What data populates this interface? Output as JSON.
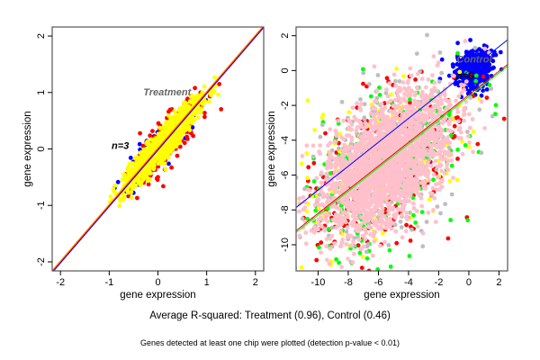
{
  "caption": "Average R-squared: Treatment (0.96), Control (0.46)",
  "footnote": "Genes detected at least one chip were plotted (detection p-value < 0.01)",
  "chart_data": [
    {
      "type": "scatter",
      "title": "",
      "xlabel": "gene expression",
      "ylabel": "gene expression",
      "xlim": [
        -2.17,
        2.17
      ],
      "ylim": [
        -2.16,
        2.16
      ],
      "xticks": [
        "-2",
        "-1",
        "0",
        "1",
        "2"
      ],
      "yticks": [
        "-2",
        "-1",
        "0",
        "1",
        "2"
      ],
      "xtick_values": [
        -2,
        -1,
        0,
        1,
        2
      ],
      "ytick_values": [
        -2,
        -1,
        0,
        1,
        2
      ],
      "annotations": [
        {
          "text": "Treatment",
          "x": -0.3,
          "y": 0.95,
          "color": "#666666"
        },
        {
          "text": "n=3",
          "x": -0.95,
          "y": 0,
          "color": "#000000"
        }
      ],
      "fit_lines": [
        {
          "color": "#0000ff",
          "slope": 1.0,
          "intercept": -0.02
        },
        {
          "color": "#ff0000",
          "slope": 1.0,
          "intercept": 0.0
        },
        {
          "color": "#ffa500",
          "slope": 1.0,
          "intercept": 0.02
        }
      ],
      "series": [
        {
          "name": "blue",
          "color": "#0000ff",
          "n": 150,
          "center": [
            0.1,
            0.1
          ],
          "along": 0.55,
          "across": 0.13
        },
        {
          "name": "red",
          "color": "#ff0000",
          "n": 250,
          "center": [
            0.15,
            0.1
          ],
          "along": 0.55,
          "across": 0.15
        },
        {
          "name": "yellow",
          "color": "#ffff00",
          "n": 1400,
          "center": [
            0.1,
            0.1
          ],
          "along": 0.5,
          "across": 0.09
        }
      ]
    },
    {
      "type": "scatter",
      "title": "",
      "xlabel": "gene expression",
      "ylabel": "gene expression",
      "xlim": [
        -11.46,
        2.57
      ],
      "ylim": [
        -11.5,
        2.5
      ],
      "xticks": [
        "-10",
        "-8",
        "-6",
        "-4",
        "-2",
        "0",
        "2"
      ],
      "yticks": [
        "-10",
        "-8",
        "-6",
        "-4",
        "-2",
        "0",
        "2"
      ],
      "xtick_values": [
        -10,
        -8,
        -6,
        -4,
        -2,
        0,
        2
      ],
      "ytick_values": [
        -10,
        -8,
        -6,
        -4,
        -2,
        0,
        2
      ],
      "annotations": [
        {
          "text": "Control",
          "x": -0.8,
          "y": 0.45,
          "color": "#666666"
        },
        {
          "text": "n=6",
          "x": -0.85,
          "y": -0.5,
          "color": "#000000"
        }
      ],
      "fit_lines": [
        {
          "color": "#0000ff",
          "slope": 0.686,
          "intercept": 0.0
        },
        {
          "color": "#ff0000",
          "slope": 0.68,
          "intercept": -1.4
        },
        {
          "color": "#00ff00",
          "slope": 0.68,
          "intercept": -1.5
        }
      ],
      "series": [
        {
          "name": "blue",
          "color": "#0000ff",
          "n": 500,
          "center": [
            0.3,
            0.1
          ],
          "along": 0.6,
          "across": 0.5
        },
        {
          "name": "red",
          "color": "#ff0000",
          "n": 250,
          "center": [
            -5.5,
            -5.5
          ],
          "along": 3.2,
          "across": 1.9
        },
        {
          "name": "green",
          "color": "#00ff00",
          "n": 250,
          "center": [
            -5.5,
            -5.5
          ],
          "along": 3.2,
          "across": 1.9
        },
        {
          "name": "yellow",
          "color": "#ffff00",
          "n": 200,
          "center": [
            -5.5,
            -5.5
          ],
          "along": 3.2,
          "across": 1.9
        },
        {
          "name": "gray",
          "color": "#bebebe",
          "n": 400,
          "center": [
            -5.5,
            -5.5
          ],
          "along": 3.0,
          "across": 1.8
        },
        {
          "name": "pink",
          "color": "#ffc0cb",
          "n": 2200,
          "center": [
            -5.5,
            -5.3
          ],
          "along": 2.6,
          "across": 1.4
        }
      ]
    }
  ]
}
